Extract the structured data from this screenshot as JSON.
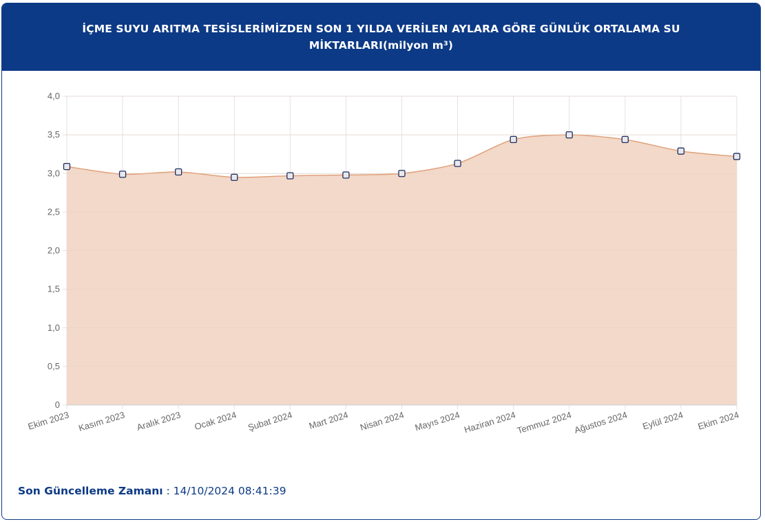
{
  "header": {
    "title": "İÇME SUYU ARITMA TESİSLERİMİZDEN SON 1 YILDA VERİLEN AYLARA GÖRE GÜNLÜK ORTALAMA SU MİKTARLARI(milyon m³)"
  },
  "chart_data": {
    "type": "area",
    "title": "",
    "xlabel": "",
    "ylabel": "",
    "categories": [
      "Ekim 2023",
      "Kasım 2023",
      "Aralık 2023",
      "Ocak 2024",
      "Şubat 2024",
      "Mart 2024",
      "Nisan 2024",
      "Mayıs 2024",
      "Haziran 2024",
      "Temmuz 2024",
      "Ağustos 2024",
      "Eylül 2024",
      "Ekim 2024"
    ],
    "series": [
      {
        "values": [
          3.09,
          2.99,
          3.02,
          2.95,
          2.97,
          2.98,
          3.0,
          3.13,
          3.44,
          3.5,
          3.44,
          3.29,
          3.22
        ]
      }
    ],
    "ylim": [
      0,
      4
    ],
    "yticks": [
      "0",
      "0,5",
      "1,0",
      "1,5",
      "2,0",
      "2,5",
      "3,0",
      "3,5",
      "4,0"
    ],
    "grid": true,
    "legend": "none",
    "colors": {
      "fill": "#f2d9c9",
      "line": "#e0a07a",
      "marker_fill": "#e8e8ee",
      "marker_stroke": "#1f2d5c",
      "grid": "#e2e2e2",
      "tick": "#666666"
    }
  },
  "footer": {
    "label": "Son Güncelleme Zamanı",
    "separator": " : ",
    "value": "14/10/2024 08:41:39"
  }
}
